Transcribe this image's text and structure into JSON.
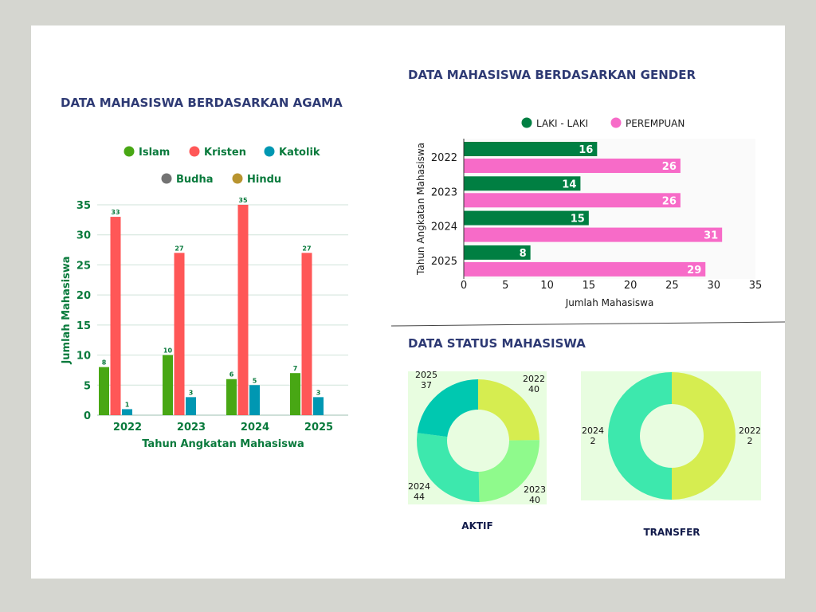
{
  "chart_data": [
    {
      "type": "bar",
      "title": "DATA MAHASISWA BERDASARKAN AGAMA",
      "xlabel": "Tahun Angkatan Mahasiswa",
      "ylabel": "Jumlah Mahasiswa",
      "ylim": [
        0,
        35
      ],
      "yticks": [
        "0",
        "5",
        "10",
        "15",
        "20",
        "25",
        "30",
        "35"
      ],
      "categories": [
        "2022",
        "2023",
        "2024",
        "2025"
      ],
      "legend": "top",
      "series": [
        {
          "name": "Islam",
          "color": "#48a714",
          "values": [
            8,
            10,
            6,
            7
          ]
        },
        {
          "name": "Kristen",
          "color": "#ff5757",
          "values": [
            33,
            27,
            35,
            27
          ]
        },
        {
          "name": "Katolik",
          "color": "#0097b2",
          "values": [
            1,
            3,
            5,
            3
          ]
        },
        {
          "name": "Budha",
          "color": "#737373",
          "values": [
            0,
            0,
            0,
            0
          ]
        },
        {
          "name": "Hindu",
          "color": "#b8942f",
          "values": [
            0,
            0,
            0,
            0
          ]
        }
      ]
    },
    {
      "type": "bar",
      "orientation": "horizontal",
      "title": "DATA MAHASISWA BERDASARKAN GENDER",
      "xlabel": "Jumlah Mahasiswa",
      "ylabel": "Tahun Angkatan Mahasiswa",
      "xlim": [
        0,
        35
      ],
      "xticks": [
        "0",
        "5",
        "10",
        "15",
        "20",
        "25",
        "30",
        "35"
      ],
      "categories": [
        "2022",
        "2023",
        "2024",
        "2025"
      ],
      "legend": "top",
      "series": [
        {
          "name": "LAKI - LAKI",
          "color": "#007f42",
          "values": [
            16,
            14,
            15,
            8
          ]
        },
        {
          "name": "PEREMPUAN",
          "color": "#f76bc8",
          "values": [
            26,
            26,
            31,
            29
          ]
        }
      ]
    },
    {
      "type": "pie",
      "title": "AKTIF",
      "labels": [
        "2022",
        "2023",
        "2024",
        "2025"
      ],
      "values": [
        40,
        40,
        44,
        37
      ],
      "colors": [
        "#d6ed50",
        "#8ffa8c",
        "#3de8ad",
        "#00c8b0"
      ]
    },
    {
      "type": "pie",
      "title": "TRANSFER",
      "labels": [
        "2022",
        "2024"
      ],
      "values": [
        2,
        2
      ],
      "colors": [
        "#d6ed50",
        "#3de8ad"
      ]
    }
  ],
  "section_title_status": "DATA STATUS MAHASISWA"
}
